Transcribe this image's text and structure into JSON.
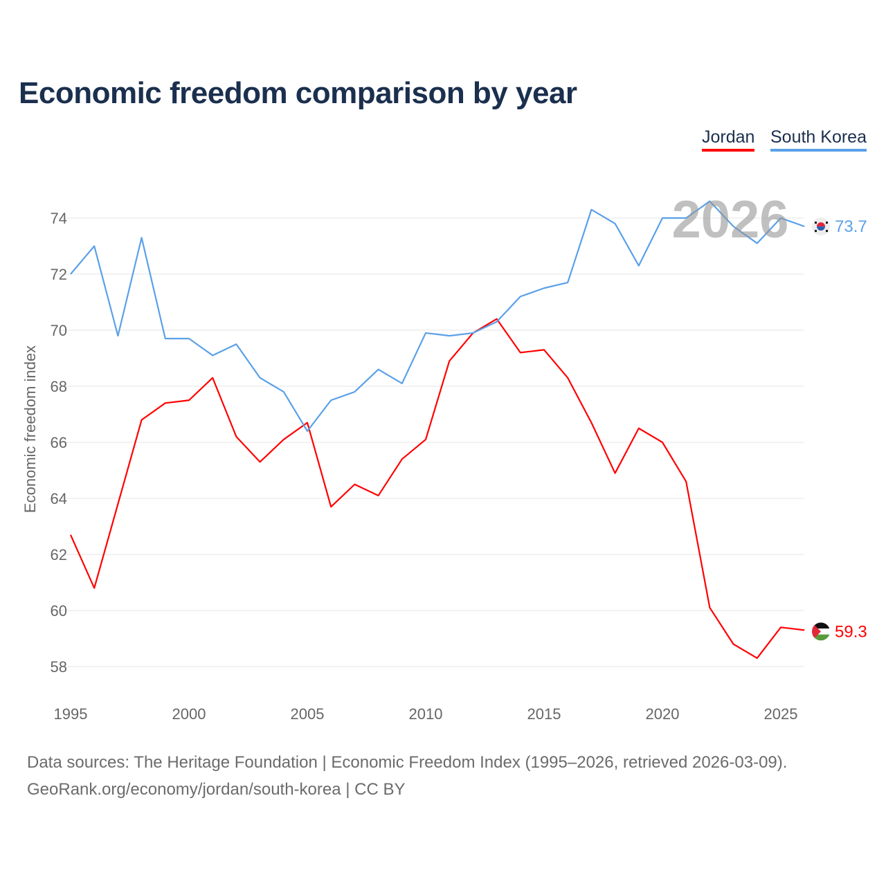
{
  "title": "Economic freedom comparison by year",
  "footer": {
    "line1": "Data sources: The Heritage Foundation | Economic Freedom Index (1995–2026, retrieved 2026-03-09).",
    "line2": "GeoRank.org/economy/jordan/south-korea | CC BY"
  },
  "chart_data": {
    "type": "line",
    "title": "Economic freedom comparison by year",
    "xlabel": "",
    "ylabel": "Economic freedom index",
    "watermark": "2026",
    "xlim": [
      1995,
      2026
    ],
    "ylim": [
      57,
      75
    ],
    "xticks": [
      1995,
      2000,
      2005,
      2010,
      2015,
      2020,
      2025
    ],
    "yticks": [
      58,
      60,
      62,
      64,
      66,
      68,
      70,
      72,
      74
    ],
    "grid": true,
    "legend": "top-right",
    "x": [
      1995,
      1996,
      1997,
      1998,
      1999,
      2000,
      2001,
      2002,
      2003,
      2004,
      2005,
      2006,
      2007,
      2008,
      2009,
      2010,
      2011,
      2012,
      2013,
      2014,
      2015,
      2016,
      2017,
      2018,
      2019,
      2020,
      2021,
      2022,
      2023,
      2024,
      2025,
      2026
    ],
    "series": [
      {
        "name": "Jordan",
        "color": "#ff0000",
        "end_label": "59.3",
        "values": [
          62.7,
          60.8,
          63.8,
          66.8,
          67.4,
          67.5,
          68.3,
          66.2,
          65.3,
          66.1,
          66.7,
          63.7,
          64.5,
          64.1,
          65.4,
          66.1,
          68.9,
          69.9,
          70.4,
          69.2,
          69.3,
          68.3,
          66.7,
          64.9,
          66.5,
          66.0,
          64.6,
          60.1,
          58.8,
          58.3,
          59.4,
          59.3
        ]
      },
      {
        "name": "South Korea",
        "color": "#5aa0e8",
        "end_label": "73.7",
        "values": [
          72.0,
          73.0,
          69.8,
          73.3,
          69.7,
          69.7,
          69.1,
          69.5,
          68.3,
          67.8,
          66.4,
          67.5,
          67.8,
          68.6,
          68.1,
          69.9,
          69.8,
          69.9,
          70.3,
          71.2,
          71.5,
          71.7,
          74.3,
          73.8,
          72.3,
          74.0,
          74.0,
          74.6,
          73.7,
          73.1,
          74.0,
          73.7
        ]
      }
    ]
  }
}
